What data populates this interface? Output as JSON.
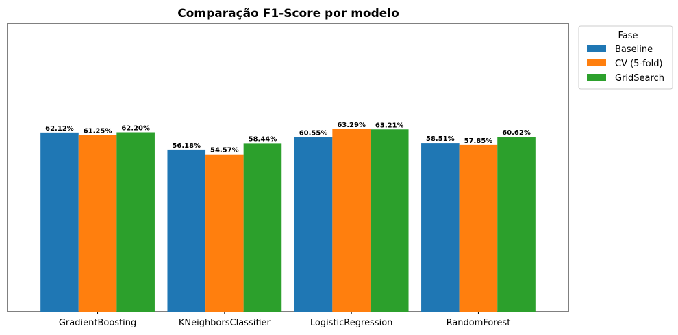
{
  "chart_data": {
    "type": "bar",
    "title": "Comparação F1-Score por modelo",
    "xlabel": "",
    "ylabel": "",
    "categories": [
      "GradientBoosting",
      "KNeighborsClassifier",
      "LogisticRegression",
      "RandomForest"
    ],
    "series": [
      {
        "name": "Baseline",
        "color": "#1f77b4",
        "values": [
          62.12,
          56.18,
          60.55,
          58.51
        ],
        "labels": [
          "62.12%",
          "56.18%",
          "60.55%",
          "58.51%"
        ]
      },
      {
        "name": "CV (5-fold)",
        "color": "#ff7f0e",
        "values": [
          61.25,
          54.57,
          63.29,
          57.85
        ],
        "labels": [
          "61.25%",
          "54.57%",
          "63.29%",
          "57.85%"
        ]
      },
      {
        "name": "GridSearch",
        "color": "#2ca02c",
        "values": [
          62.2,
          58.44,
          63.21,
          60.62
        ],
        "labels": [
          "62.20%",
          "58.44%",
          "63.21%",
          "60.62%"
        ]
      }
    ],
    "ylim": [
      0,
      100
    ],
    "y_ticks_visible": false,
    "grid": false,
    "legend": {
      "title": "Fase",
      "placement": "outside-top-right"
    }
  }
}
